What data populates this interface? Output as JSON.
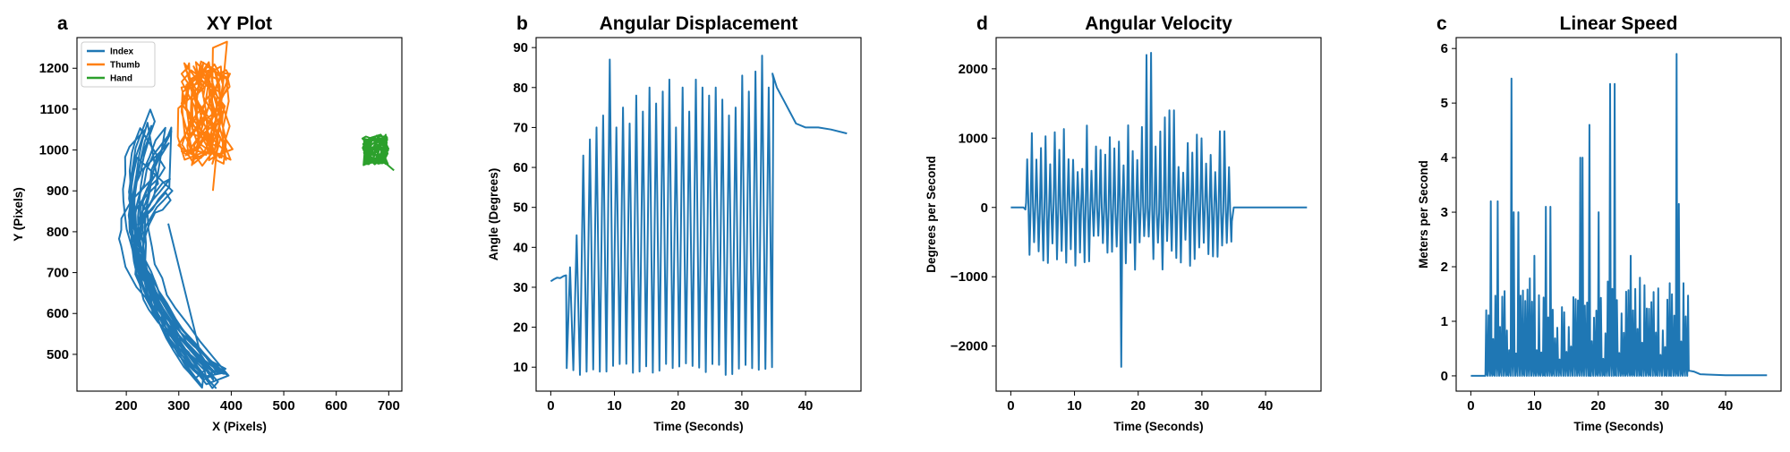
{
  "colors": {
    "blue": "#1f77b4",
    "orange": "#ff7f0e",
    "green": "#2ca02c"
  },
  "chart_data": [
    {
      "type": "line",
      "letter": "a",
      "title": "XY Plot",
      "xlabel": "X (Pixels)",
      "ylabel": "Y (Pixels)",
      "xlim": [
        106,
        725
      ],
      "ylim": [
        410,
        1275
      ],
      "xticks": [
        200,
        300,
        400,
        500,
        600,
        700
      ],
      "yticks": [
        500,
        600,
        700,
        800,
        900,
        1000,
        1100,
        1200
      ],
      "grid": false,
      "legend": "top-left",
      "series": [
        {
          "name": "Index",
          "color": "#1f77b4"
        },
        {
          "name": "Thumb",
          "color": "#ff7f0e"
        },
        {
          "name": "Hand",
          "color": "#2ca02c"
        }
      ]
    },
    {
      "type": "line",
      "letter": "b",
      "title": "Angular Displacement",
      "xlabel": "Time (Seconds)",
      "ylabel": "Angle (Degrees)",
      "xlim": [
        -2.3,
        48.7
      ],
      "ylim": [
        4.0,
        92.5
      ],
      "xticks": [
        0,
        10,
        20,
        30,
        40
      ],
      "yticks": [
        10,
        20,
        30,
        40,
        50,
        60,
        70,
        80,
        90
      ],
      "grid": false,
      "legend": "none",
      "series": [
        {
          "color": "#1f77b4"
        }
      ]
    },
    {
      "type": "line",
      "letter": "d",
      "title": "Angular Velocity",
      "xlabel": "Time (Seconds)",
      "ylabel": "Degrees per Second",
      "xlim": [
        -2.3,
        48.7
      ],
      "ylim": [
        -2650,
        2450
      ],
      "xticks": [
        0,
        10,
        20,
        30,
        40
      ],
      "yticks": [
        -2000,
        -1000,
        0,
        1000,
        2000
      ],
      "ytick_labels": [
        "−2000",
        "−1000",
        "0",
        "1000",
        "2000"
      ],
      "grid": false,
      "legend": "none",
      "series": [
        {
          "color": "#1f77b4"
        }
      ]
    },
    {
      "type": "line",
      "letter": "c",
      "title": "Linear Speed",
      "xlabel": "Time (Seconds)",
      "ylabel": "Meters per Second",
      "xlim": [
        -2.3,
        48.7
      ],
      "ylim": [
        -0.28,
        6.2
      ],
      "xticks": [
        0,
        10,
        20,
        30,
        40
      ],
      "yticks": [
        0,
        1,
        2,
        3,
        4,
        5,
        6
      ],
      "grid": false,
      "legend": "none",
      "series": [
        {
          "color": "#1f77b4"
        }
      ]
    }
  ]
}
